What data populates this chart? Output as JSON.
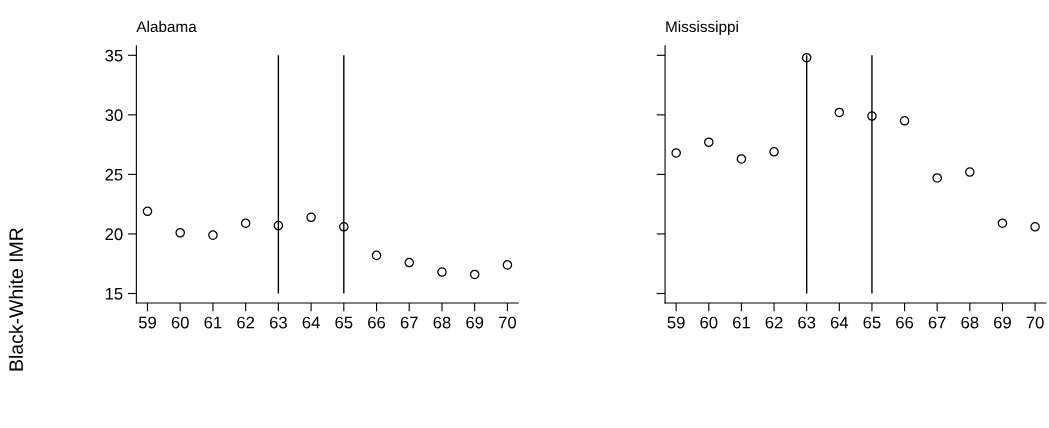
{
  "chart_data": [
    {
      "type": "scatter",
      "title": "Alabama",
      "ylabel": "Black-White IMR",
      "marker": "circle",
      "grid": false,
      "x": [
        59,
        60,
        61,
        62,
        63,
        64,
        65,
        66,
        67,
        68,
        69,
        70
      ],
      "series": [
        {
          "color": "#000000",
          "values": [
            21.9,
            20.1,
            19.9,
            20.9,
            20.7,
            21.4,
            20.6,
            18.2,
            17.6,
            16.8,
            16.6,
            17.4
          ]
        }
      ],
      "xlim": [
        58.66,
        70.33
      ],
      "xticks": [
        59,
        60,
        61,
        62,
        63,
        64,
        65,
        66,
        67,
        68,
        69,
        70
      ],
      "ylim": [
        14.2,
        35.8
      ],
      "yticks": [
        15,
        20,
        25,
        30,
        35
      ],
      "ref_lines": [
        {
          "axis": "x",
          "value": 63,
          "color": "#000000"
        },
        {
          "axis": "x",
          "value": 65,
          "color": "#000000"
        }
      ]
    },
    {
      "type": "scatter",
      "title": "Mississippi",
      "marker": "circle",
      "grid": false,
      "tick_labels": "x",
      "x": [
        59,
        60,
        61,
        62,
        63,
        64,
        65,
        66,
        67,
        68,
        69,
        70
      ],
      "series": [
        {
          "color": "#000000",
          "values": [
            26.8,
            27.7,
            26.3,
            26.9,
            34.8,
            30.2,
            29.9,
            29.5,
            24.7,
            25.2,
            20.9,
            20.6
          ]
        }
      ],
      "xlim": [
        58.66,
        70.33
      ],
      "xticks": [
        59,
        60,
        61,
        62,
        63,
        64,
        65,
        66,
        67,
        68,
        69,
        70
      ],
      "ylim": [
        14.2,
        35.8
      ],
      "yticks": [
        15,
        20,
        25,
        30,
        35
      ],
      "ref_lines": [
        {
          "axis": "x",
          "value": 63,
          "color": "#000000"
        },
        {
          "axis": "x",
          "value": 65,
          "color": "#000000"
        }
      ]
    }
  ]
}
